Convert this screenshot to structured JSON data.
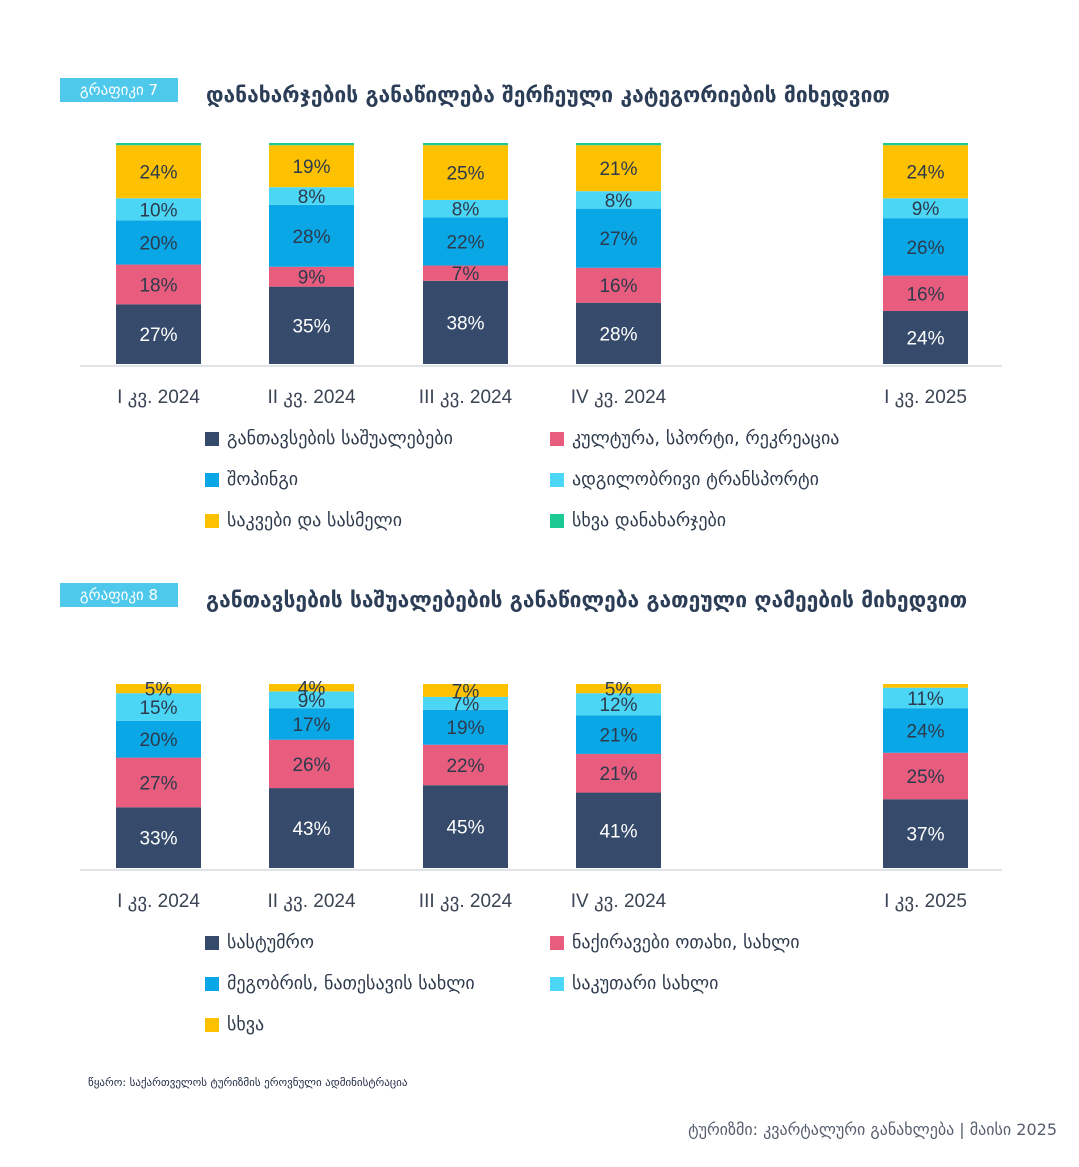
{
  "charts": [
    {
      "tag": "გრაფიკი 7",
      "title": "დანახარჯების განაწილება შერჩეული კატეგორიების მიხედვით",
      "legend_rows": [
        [
          "0",
          "1"
        ],
        [
          "2",
          "3"
        ],
        [
          "4",
          "5"
        ]
      ]
    },
    {
      "tag": "გრაფიკი 8",
      "title": "განთავსების საშუალებების განაწილება გათეული ღამეების მიხედვით",
      "legend_rows": [
        [
          "0",
          "1"
        ],
        [
          "2",
          "3"
        ],
        [
          "4"
        ]
      ]
    }
  ],
  "chart_data": [
    {
      "type": "bar",
      "stacked": true,
      "categories": [
        "I კვ. 2024",
        "II კვ. 2024",
        "III კვ. 2024",
        "IV კვ. 2024",
        "I კვ. 2025"
      ],
      "series": [
        {
          "name": "განთავსების საშუალებები",
          "color": "#364b6b",
          "values": [
            27,
            35,
            38,
            28,
            24
          ]
        },
        {
          "name": "კულტურა, სპორტი, რეკრეაცია",
          "color": "#e85c7e",
          "values": [
            18,
            9,
            7,
            16,
            16
          ]
        },
        {
          "name": "შოპინგი",
          "color": "#0aa7e6",
          "values": [
            20,
            28,
            22,
            27,
            26
          ]
        },
        {
          "name": "ადგილობრივი ტრანსპორტი",
          "color": "#4cd6f5",
          "values": [
            10,
            8,
            8,
            8,
            9
          ]
        },
        {
          "name": "საკვები და სასმელი",
          "color": "#fdc100",
          "values": [
            24,
            19,
            25,
            21,
            24
          ]
        },
        {
          "name": "სხვა დანახარჯები",
          "color": "#1bc992",
          "values": [
            1,
            1,
            1,
            1,
            1
          ]
        }
      ],
      "data_label_suffix": "%"
    },
    {
      "type": "bar",
      "stacked": true,
      "categories": [
        "I კვ. 2024",
        "II კვ. 2024",
        "III კვ. 2024",
        "IV კვ. 2024",
        "I კვ. 2025"
      ],
      "series": [
        {
          "name": "სასტუმრო",
          "color": "#364b6b",
          "values": [
            33,
            43,
            45,
            41,
            37
          ]
        },
        {
          "name": "ნაქირავები ოთახი, სახლი",
          "color": "#e85c7e",
          "values": [
            27,
            26,
            22,
            21,
            25
          ]
        },
        {
          "name": "მეგობრის, ნათესავის სახლი",
          "color": "#0aa7e6",
          "values": [
            20,
            17,
            19,
            21,
            24
          ]
        },
        {
          "name": "საკუთარი სახლი",
          "color": "#4cd6f5",
          "values": [
            15,
            9,
            7,
            12,
            11
          ]
        },
        {
          "name": "სხვა",
          "color": "#fdc100",
          "values": [
            5,
            4,
            7,
            5,
            2
          ]
        }
      ],
      "data_label_suffix": "%",
      "hidden_labels": [
        [
          4,
          4
        ]
      ]
    }
  ],
  "source": "წყარო: საქართველოს ტურიზმის ეროვნული ადმინისტრაცია",
  "footer": "ტურიზმი: კვარტალური განახლება | მაისი 2025"
}
